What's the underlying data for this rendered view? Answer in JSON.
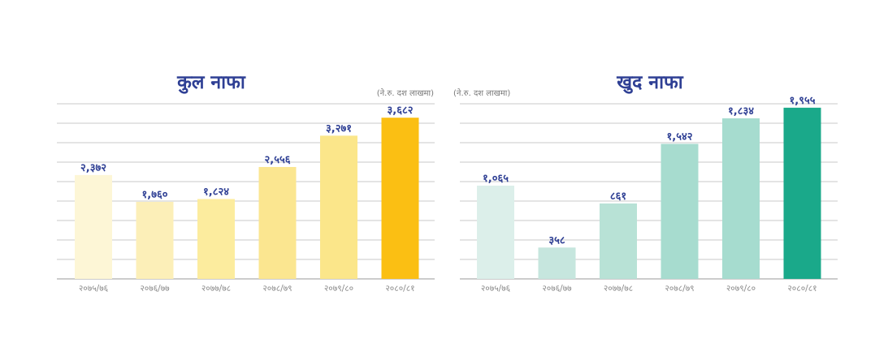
{
  "chart_data": [
    {
      "type": "bar",
      "title": "कुल नाफा",
      "unit_note": "(ने.रु. दश लाखमा)",
      "categories": [
        "२०७५/७६",
        "२०७६/७७",
        "२०७७/७८",
        "२०७८/७९",
        "२०७९/८०",
        "२०८०/८१"
      ],
      "values": [
        2372,
        1760,
        1824,
        2556,
        3271,
        3682
      ],
      "value_labels": [
        "२,३७२",
        "१,७६०",
        "१,८२४",
        "२,५५६",
        "३,२७१",
        "३,६८२"
      ],
      "bar_colors": [
        "#fdf6d6",
        "#fcefb8",
        "#fcec9e",
        "#fbe690",
        "#fbe68a",
        "#fbbf13"
      ],
      "ylim": [
        0,
        4000
      ],
      "grid": true
    },
    {
      "type": "bar",
      "title": "खुद नाफा",
      "unit_note": "(ने.रु. दश लाखमा)",
      "categories": [
        "२०७५/७६",
        "२०७६/७७",
        "२०७७/७८",
        "२०७८/७९",
        "२०७९/८०",
        "२०८०/८१"
      ],
      "values": [
        1065,
        358,
        861,
        1542,
        1834,
        1955
      ],
      "value_labels": [
        "१,०६५",
        "३५८",
        "८६१",
        "१,५४२",
        "१,८३४",
        "१,९५५"
      ],
      "bar_colors": [
        "#dcefea",
        "#c6e6de",
        "#b8e2d6",
        "#a7dccf",
        "#a6dccf",
        "#1aa98a"
      ],
      "ylim": [
        0,
        2000
      ],
      "grid": true
    }
  ]
}
